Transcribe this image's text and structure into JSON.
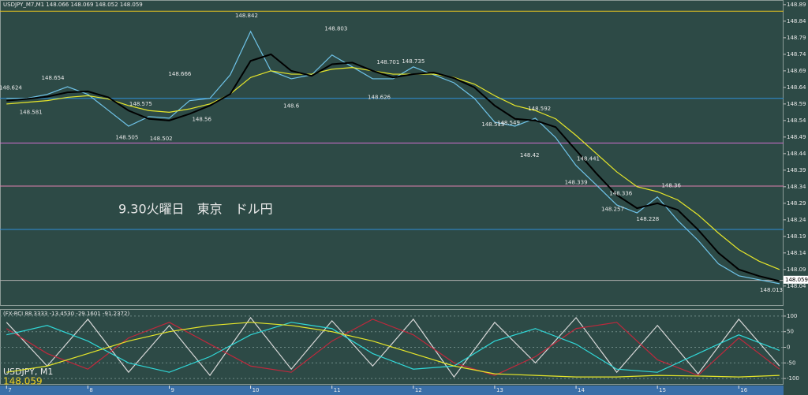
{
  "chart_data": [
    {
      "type": "line",
      "header": "USDJPY_M7,M1  148.066 148.069 148.052 148.059",
      "annotation": "9.30火曜日　東京　ドル円",
      "symbol": "USDJPY, M1",
      "last_price": 148.059,
      "x": [
        7,
        7.25,
        7.5,
        7.75,
        8,
        8.25,
        8.5,
        8.75,
        9,
        9.25,
        9.5,
        9.75,
        10,
        10.25,
        10.5,
        10.75,
        11,
        11.25,
        11.5,
        11.75,
        12,
        12.25,
        12.5,
        12.75,
        13,
        13.25,
        13.5,
        13.75,
        14,
        14.25,
        14.5,
        14.75,
        15,
        15.25,
        15.5,
        15.75,
        16,
        16.25,
        16.5
      ],
      "series": [
        {
          "color": "#6fc3e8",
          "values": [
            148.607,
            148.607,
            148.619,
            148.642,
            148.619,
            148.571,
            148.523,
            148.552,
            148.547,
            148.6,
            148.607,
            148.678,
            148.809,
            148.69,
            148.666,
            148.678,
            148.738,
            148.702,
            148.666,
            148.666,
            148.702,
            148.678,
            148.654,
            148.607,
            148.535,
            148.523,
            148.547,
            148.488,
            148.404,
            148.345,
            148.285,
            148.261,
            148.309,
            148.238,
            148.178,
            148.107,
            148.071,
            148.059,
            148.047
          ]
        },
        {
          "color": "#e6e62a",
          "values": [
            148.59,
            148.595,
            148.6,
            148.61,
            148.615,
            148.605,
            148.585,
            148.57,
            148.565,
            148.575,
            148.59,
            148.62,
            148.67,
            148.69,
            148.68,
            148.68,
            148.695,
            148.7,
            148.69,
            148.68,
            148.68,
            148.68,
            148.67,
            148.65,
            148.615,
            148.585,
            148.57,
            148.545,
            148.495,
            148.44,
            148.385,
            148.34,
            148.325,
            148.3,
            148.255,
            148.2,
            148.15,
            148.115,
            148.09
          ]
        },
        {
          "color": "#000000",
          "values": [
            148.6,
            148.605,
            148.612,
            148.625,
            148.628,
            148.61,
            148.57,
            148.545,
            148.54,
            148.56,
            148.585,
            148.62,
            148.72,
            148.74,
            148.69,
            148.675,
            148.71,
            148.715,
            148.69,
            148.67,
            148.68,
            148.685,
            148.668,
            148.64,
            148.585,
            148.545,
            148.54,
            148.52,
            148.45,
            148.38,
            148.315,
            148.275,
            148.29,
            148.27,
            148.21,
            148.14,
            148.09,
            148.07,
            148.055
          ]
        }
      ],
      "levels": [
        {
          "value": 148.87,
          "color": "#e0c020"
        },
        {
          "value": 148.607,
          "color": "#2f8fd8"
        },
        {
          "value": 148.472,
          "color": "#d070d0"
        },
        {
          "value": 148.342,
          "color": "#e080b0"
        },
        {
          "value": 148.211,
          "color": "#2f8fd8"
        },
        {
          "value": 148.057,
          "color": "#b0b0b0"
        }
      ],
      "price_labels": [
        {
          "x": 7.05,
          "value": 148.624
        },
        {
          "x": 7.3,
          "value": 148.581
        },
        {
          "x": 7.57,
          "value": 148.654
        },
        {
          "x": 8.48,
          "value": 148.505
        },
        {
          "x": 8.65,
          "value": 148.575
        },
        {
          "x": 8.9,
          "value": 148.502
        },
        {
          "x": 9.13,
          "value": 148.666
        },
        {
          "x": 9.4,
          "value": 148.56
        },
        {
          "x": 9.95,
          "value": 148.842
        },
        {
          "x": 10.5,
          "value": 148.6
        },
        {
          "x": 11.05,
          "value": 148.803
        },
        {
          "x": 11.58,
          "value": 148.626
        },
        {
          "x": 11.69,
          "value": 148.701
        },
        {
          "x": 12.0,
          "value": 148.735
        },
        {
          "x": 12.98,
          "value": 148.513
        },
        {
          "x": 13.17,
          "value": 148.549
        },
        {
          "x": 13.43,
          "value": 148.42
        },
        {
          "x": 13.55,
          "value": 148.592
        },
        {
          "x": 14.0,
          "value": 148.339
        },
        {
          "x": 14.15,
          "value": 148.441
        },
        {
          "x": 14.45,
          "value": 148.257
        },
        {
          "x": 14.55,
          "value": 148.336
        },
        {
          "x": 14.88,
          "value": 148.228
        },
        {
          "x": 15.17,
          "value": 148.36
        },
        {
          "x": 16.4,
          "value": 148.013
        }
      ],
      "xlim": [
        6.92,
        16.55
      ],
      "xticks": [
        7,
        8,
        9,
        10,
        11,
        12,
        13,
        14,
        15,
        16
      ],
      "ylim": [
        147.98,
        148.904
      ],
      "yticks": [
        148.89,
        148.84,
        148.79,
        148.74,
        148.69,
        148.64,
        148.59,
        148.54,
        148.49,
        148.44,
        148.39,
        148.34,
        148.29,
        148.24,
        148.19,
        148.14,
        148.09,
        148.04
      ]
    },
    {
      "type": "line",
      "header": "(FX-RCI 88.3333 -13.4530 -29.1601 -91.2372)",
      "x": [
        7,
        7.5,
        8,
        8.5,
        9,
        9.5,
        10,
        10.5,
        11,
        11.5,
        12,
        12.5,
        13,
        13.5,
        14,
        14.5,
        15,
        15.5,
        16,
        16.5
      ],
      "series": [
        {
          "color": "#d8d8d8",
          "values": [
            80,
            -60,
            90,
            -80,
            70,
            -90,
            95,
            -70,
            85,
            -60,
            90,
            -95,
            80,
            -50,
            95,
            -80,
            70,
            -85,
            90,
            -60
          ]
        },
        {
          "color": "#c0283c",
          "values": [
            60,
            -20,
            -70,
            30,
            80,
            10,
            -60,
            -80,
            20,
            90,
            40,
            -50,
            -90,
            -30,
            60,
            80,
            -40,
            -90,
            30,
            -70
          ]
        },
        {
          "color": "#30d8d8",
          "values": [
            40,
            70,
            20,
            -50,
            -80,
            -30,
            40,
            80,
            60,
            -20,
            -70,
            -60,
            20,
            60,
            10,
            -70,
            -80,
            -20,
            40,
            -10
          ]
        },
        {
          "color": "#e6e62a",
          "values": [
            -80,
            -60,
            -20,
            20,
            50,
            70,
            80,
            70,
            50,
            20,
            -20,
            -60,
            -85,
            -90,
            -95,
            -95,
            -90,
            -92,
            -95,
            -90
          ]
        }
      ],
      "xlim": [
        6.92,
        16.55
      ],
      "ylim": [
        -120,
        120
      ],
      "yticks": [
        100,
        50,
        0,
        -50,
        -100
      ]
    }
  ]
}
